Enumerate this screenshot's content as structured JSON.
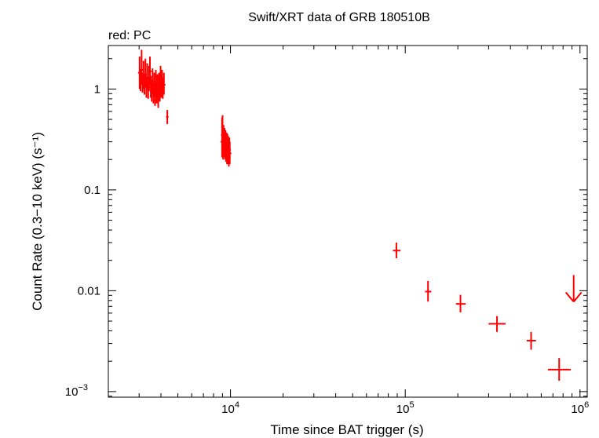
{
  "chart_data": {
    "type": "scatter",
    "title": "Swift/XRT data of GRB 180510B",
    "legend": "red: PC",
    "xlabel": "Time since BAT trigger (s)",
    "ylabel": "Count Rate (0.3−10 keV) (s⁻¹)",
    "xscale": "log",
    "yscale": "log",
    "xlim": [
      2000,
      1100000
    ],
    "ylim": [
      0.00088,
      2.7
    ],
    "x_ticks": [
      {
        "value": 10000,
        "base": "10",
        "exp": "4"
      },
      {
        "value": 100000,
        "base": "10",
        "exp": "5"
      },
      {
        "value": 1000000,
        "base": "10",
        "exp": "6"
      }
    ],
    "y_ticks": [
      {
        "value": 1,
        "label": "1"
      },
      {
        "value": 0.1,
        "label": "0.1"
      },
      {
        "value": 0.01,
        "label": "0.01"
      },
      {
        "value": 0.001,
        "label": "10",
        "exp": "−3"
      }
    ],
    "series": [
      {
        "name": "PC",
        "color": "#ff0000",
        "points": [
          {
            "t": 3020,
            "rate": 1.45,
            "rate_lo": 1.0,
            "rate_hi": 2.1
          },
          {
            "t": 3060,
            "rate": 1.2,
            "rate_lo": 0.95,
            "rate_hi": 1.55
          },
          {
            "t": 3100,
            "rate": 1.55,
            "rate_lo": 1.1,
            "rate_hi": 2.45
          },
          {
            "t": 3140,
            "rate": 1.15,
            "rate_lo": 0.92,
            "rate_hi": 1.45
          },
          {
            "t": 3180,
            "rate": 1.35,
            "rate_lo": 1.0,
            "rate_hi": 1.9
          },
          {
            "t": 3220,
            "rate": 1.1,
            "rate_lo": 0.88,
            "rate_hi": 1.4
          },
          {
            "t": 3260,
            "rate": 1.4,
            "rate_lo": 1.05,
            "rate_hi": 2.0
          },
          {
            "t": 3300,
            "rate": 1.05,
            "rate_lo": 0.82,
            "rate_hi": 1.35
          },
          {
            "t": 3340,
            "rate": 1.3,
            "rate_lo": 0.98,
            "rate_hi": 1.8
          },
          {
            "t": 3380,
            "rate": 1.0,
            "rate_lo": 0.8,
            "rate_hi": 1.3
          },
          {
            "t": 3420,
            "rate": 1.25,
            "rate_lo": 0.95,
            "rate_hi": 1.7
          },
          {
            "t": 3460,
            "rate": 1.5,
            "rate_lo": 1.1,
            "rate_hi": 2.1
          },
          {
            "t": 3500,
            "rate": 1.05,
            "rate_lo": 0.82,
            "rate_hi": 1.35
          },
          {
            "t": 3540,
            "rate": 0.95,
            "rate_lo": 0.75,
            "rate_hi": 1.2
          },
          {
            "t": 3580,
            "rate": 1.2,
            "rate_lo": 0.92,
            "rate_hi": 1.6
          },
          {
            "t": 3620,
            "rate": 0.9,
            "rate_lo": 0.72,
            "rate_hi": 1.15
          },
          {
            "t": 3660,
            "rate": 1.1,
            "rate_lo": 0.85,
            "rate_hi": 1.45
          },
          {
            "t": 3700,
            "rate": 0.85,
            "rate_lo": 0.68,
            "rate_hi": 1.1
          },
          {
            "t": 3740,
            "rate": 1.15,
            "rate_lo": 0.88,
            "rate_hi": 1.55
          },
          {
            "t": 3780,
            "rate": 0.9,
            "rate_lo": 0.72,
            "rate_hi": 1.15
          },
          {
            "t": 3820,
            "rate": 1.05,
            "rate_lo": 0.82,
            "rate_hi": 1.4
          },
          {
            "t": 3860,
            "rate": 0.8,
            "rate_lo": 0.65,
            "rate_hi": 1.0
          },
          {
            "t": 3900,
            "rate": 1.1,
            "rate_lo": 0.86,
            "rate_hi": 1.45
          },
          {
            "t": 3940,
            "rate": 0.95,
            "rate_lo": 0.75,
            "rate_hi": 1.25
          },
          {
            "t": 3980,
            "rate": 1.25,
            "rate_lo": 0.95,
            "rate_hi": 1.7
          },
          {
            "t": 4020,
            "rate": 1.05,
            "rate_lo": 0.82,
            "rate_hi": 1.4
          },
          {
            "t": 4060,
            "rate": 1.15,
            "rate_lo": 0.9,
            "rate_hi": 1.55
          },
          {
            "t": 4100,
            "rate": 1.0,
            "rate_lo": 0.8,
            "rate_hi": 1.3
          },
          {
            "t": 4160,
            "rate": 1.1,
            "rate_lo": 0.88,
            "rate_hi": 1.45
          },
          {
            "t": 4350,
            "rate": 0.53,
            "rate_lo": 0.45,
            "rate_hi": 0.62,
            "t_lo": 4280,
            "t_hi": 4420
          },
          {
            "t": 8950,
            "rate": 0.3,
            "rate_lo": 0.21,
            "rate_hi": 0.52
          },
          {
            "t": 9010,
            "rate": 0.35,
            "rate_lo": 0.24,
            "rate_hi": 0.55
          },
          {
            "t": 9070,
            "rate": 0.27,
            "rate_lo": 0.2,
            "rate_hi": 0.4
          },
          {
            "t": 9130,
            "rate": 0.32,
            "rate_lo": 0.24,
            "rate_hi": 0.44
          },
          {
            "t": 9190,
            "rate": 0.28,
            "rate_lo": 0.21,
            "rate_hi": 0.38
          },
          {
            "t": 9250,
            "rate": 0.3,
            "rate_lo": 0.22,
            "rate_hi": 0.41
          },
          {
            "t": 9310,
            "rate": 0.26,
            "rate_lo": 0.2,
            "rate_hi": 0.35
          },
          {
            "t": 9370,
            "rate": 0.29,
            "rate_lo": 0.22,
            "rate_hi": 0.39
          },
          {
            "t": 9430,
            "rate": 0.25,
            "rate_lo": 0.19,
            "rate_hi": 0.34
          },
          {
            "t": 9490,
            "rate": 0.28,
            "rate_lo": 0.21,
            "rate_hi": 0.37
          },
          {
            "t": 9550,
            "rate": 0.24,
            "rate_lo": 0.18,
            "rate_hi": 0.32
          },
          {
            "t": 9610,
            "rate": 0.27,
            "rate_lo": 0.2,
            "rate_hi": 0.36
          },
          {
            "t": 9670,
            "rate": 0.23,
            "rate_lo": 0.18,
            "rate_hi": 0.31
          },
          {
            "t": 9730,
            "rate": 0.26,
            "rate_lo": 0.2,
            "rate_hi": 0.34
          },
          {
            "t": 9790,
            "rate": 0.22,
            "rate_lo": 0.17,
            "rate_hi": 0.3
          },
          {
            "t": 9850,
            "rate": 0.25,
            "rate_lo": 0.19,
            "rate_hi": 0.33
          },
          {
            "t": 9910,
            "rate": 0.23,
            "rate_lo": 0.18,
            "rate_hi": 0.3
          },
          {
            "t": 89000,
            "rate": 0.025,
            "rate_lo": 0.021,
            "rate_hi": 0.03,
            "t_lo": 85000,
            "t_hi": 94000
          },
          {
            "t": 135000,
            "rate": 0.0098,
            "rate_lo": 0.0078,
            "rate_hi": 0.0125,
            "t_lo": 130000,
            "t_hi": 141000
          },
          {
            "t": 207000,
            "rate": 0.0074,
            "rate_lo": 0.0061,
            "rate_hi": 0.0091,
            "t_lo": 195000,
            "t_hi": 222000
          },
          {
            "t": 335000,
            "rate": 0.0047,
            "rate_lo": 0.0039,
            "rate_hi": 0.0056,
            "t_lo": 300000,
            "t_hi": 375000
          },
          {
            "t": 525000,
            "rate": 0.0032,
            "rate_lo": 0.0026,
            "rate_hi": 0.0039,
            "t_lo": 495000,
            "t_hi": 560000
          },
          {
            "t": 760000,
            "rate": 0.00165,
            "rate_lo": 0.00128,
            "rate_hi": 0.00215,
            "t_lo": 655000,
            "t_hi": 885000
          }
        ],
        "upper_limits": [
          {
            "t": 920000,
            "rate": 0.0093
          }
        ]
      }
    ]
  }
}
